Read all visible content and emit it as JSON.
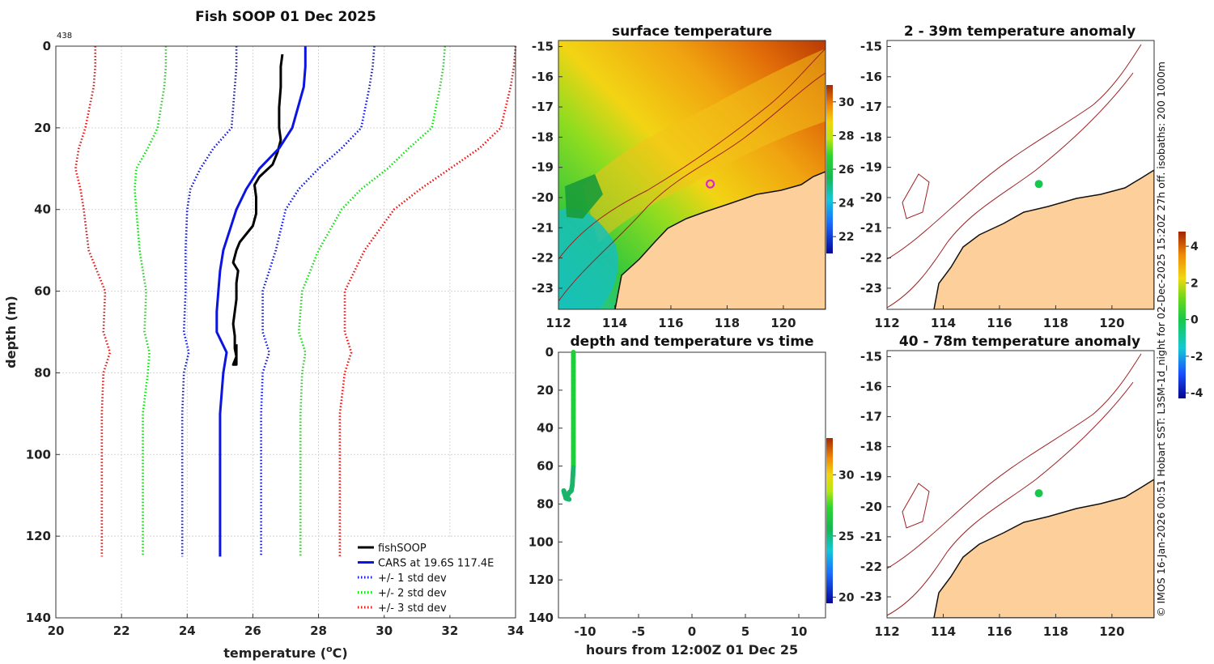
{
  "side_credit": "© IMOS 16-Jan-2026 00:51 Hobart SST: L3SM-1d_night for 02-Dec-2025 15:20Z 27h off. isobaths: 200  1000m",
  "chart_data": [
    {
      "id": "profile",
      "type": "line",
      "title": "Fish SOOP 01 Dec 2025",
      "corner_label": "438",
      "xlabel": "temperature (°C)",
      "xlabel_main": "temperature (",
      "xlabel_sup": "o",
      "xlabel_tail": "C)",
      "ylabel": "depth (m)",
      "xlim": [
        20,
        34
      ],
      "ylim": [
        140,
        0
      ],
      "xticks": [
        20,
        22,
        24,
        26,
        28,
        30,
        32,
        34
      ],
      "yticks": [
        0,
        20,
        40,
        60,
        80,
        100,
        120,
        140
      ],
      "legend_position": "bottom-right",
      "series": [
        {
          "name": "fishSOOP",
          "color": "#000000",
          "style": "solid",
          "points": [
            [
              26.9,
              2
            ],
            [
              26.85,
              5
            ],
            [
              26.85,
              10
            ],
            [
              26.8,
              15
            ],
            [
              26.8,
              20
            ],
            [
              26.85,
              23
            ],
            [
              26.75,
              26
            ],
            [
              26.6,
              29
            ],
            [
              26.2,
              32
            ],
            [
              26.05,
              34
            ],
            [
              26.1,
              37
            ],
            [
              26.1,
              41
            ],
            [
              26.0,
              44
            ],
            [
              25.8,
              46
            ],
            [
              25.6,
              48
            ],
            [
              25.5,
              50
            ],
            [
              25.4,
              53
            ],
            [
              25.55,
              55
            ],
            [
              25.5,
              58
            ],
            [
              25.5,
              62
            ],
            [
              25.45,
              65
            ],
            [
              25.4,
              68
            ],
            [
              25.45,
              71
            ],
            [
              25.45,
              74
            ],
            [
              25.5,
              76
            ],
            [
              25.4,
              78
            ],
            [
              25.5,
              78
            ],
            [
              25.5,
              73
            ]
          ]
        },
        {
          "name": "CARS at 19.6S 117.4E",
          "color": "#0b14e0",
          "style": "solid",
          "points": [
            [
              27.6,
              0
            ],
            [
              27.6,
              5
            ],
            [
              27.55,
              10
            ],
            [
              27.2,
              20
            ],
            [
              26.8,
              25
            ],
            [
              26.2,
              30
            ],
            [
              25.8,
              35
            ],
            [
              25.5,
              40
            ],
            [
              25.3,
              45
            ],
            [
              25.1,
              50
            ],
            [
              25.0,
              55
            ],
            [
              24.95,
              60
            ],
            [
              24.9,
              65
            ],
            [
              24.9,
              70
            ],
            [
              25.2,
              75
            ],
            [
              25.1,
              80
            ],
            [
              25.0,
              90
            ],
            [
              25.0,
              100
            ],
            [
              25.0,
              110
            ],
            [
              25.0,
              125
            ]
          ]
        },
        {
          "name": "+/- 1 std dev",
          "color": "#0b14e0",
          "style": "dotted",
          "points": [
            [
              25.5,
              0
            ],
            [
              25.5,
              5
            ],
            [
              25.45,
              10
            ],
            [
              25.35,
              20
            ],
            [
              24.8,
              25
            ],
            [
              24.4,
              30
            ],
            [
              24.1,
              35
            ],
            [
              24.0,
              40
            ],
            [
              23.95,
              50
            ],
            [
              23.95,
              60
            ],
            [
              23.9,
              70
            ],
            [
              24.05,
              75
            ],
            [
              23.9,
              80
            ],
            [
              23.85,
              90
            ],
            [
              23.85,
              100
            ],
            [
              23.85,
              125
            ]
          ]
        },
        {
          "name": "+/- 1 std dev upper",
          "color": "#0b14e0",
          "style": "dotted",
          "points": [
            [
              29.7,
              0
            ],
            [
              29.65,
              5
            ],
            [
              29.55,
              10
            ],
            [
              29.3,
              20
            ],
            [
              28.7,
              25
            ],
            [
              28.0,
              30
            ],
            [
              27.4,
              35
            ],
            [
              27.0,
              40
            ],
            [
              26.7,
              50
            ],
            [
              26.3,
              60
            ],
            [
              26.3,
              70
            ],
            [
              26.5,
              75
            ],
            [
              26.3,
              80
            ],
            [
              26.25,
              90
            ],
            [
              26.25,
              100
            ],
            [
              26.25,
              125
            ]
          ]
        },
        {
          "name": "+/- 2 std dev",
          "color": "#11dd11",
          "style": "dotted",
          "points": [
            [
              23.35,
              0
            ],
            [
              23.35,
              5
            ],
            [
              23.3,
              10
            ],
            [
              23.1,
              20
            ],
            [
              22.8,
              25
            ],
            [
              22.45,
              30
            ],
            [
              22.4,
              35
            ],
            [
              22.45,
              40
            ],
            [
              22.55,
              50
            ],
            [
              22.75,
              60
            ],
            [
              22.7,
              70
            ],
            [
              22.85,
              75
            ],
            [
              22.8,
              80
            ],
            [
              22.65,
              90
            ],
            [
              22.65,
              100
            ],
            [
              22.65,
              125
            ]
          ]
        },
        {
          "name": "+/- 2 std dev upper",
          "color": "#11dd11",
          "style": "dotted",
          "points": [
            [
              31.85,
              0
            ],
            [
              31.8,
              5
            ],
            [
              31.7,
              10
            ],
            [
              31.45,
              20
            ],
            [
              30.75,
              25
            ],
            [
              30.1,
              30
            ],
            [
              29.3,
              35
            ],
            [
              28.7,
              40
            ],
            [
              28.0,
              50
            ],
            [
              27.5,
              60
            ],
            [
              27.4,
              70
            ],
            [
              27.6,
              75
            ],
            [
              27.5,
              80
            ],
            [
              27.45,
              90
            ],
            [
              27.45,
              100
            ],
            [
              27.45,
              125
            ]
          ]
        },
        {
          "name": "+/- 3 std dev",
          "color": "#ee1111",
          "style": "dotted",
          "points": [
            [
              21.2,
              0
            ],
            [
              21.2,
              5
            ],
            [
              21.15,
              10
            ],
            [
              20.9,
              20
            ],
            [
              20.7,
              25
            ],
            [
              20.6,
              30
            ],
            [
              20.75,
              35
            ],
            [
              20.85,
              40
            ],
            [
              21.0,
              50
            ],
            [
              21.5,
              60
            ],
            [
              21.45,
              70
            ],
            [
              21.65,
              75
            ],
            [
              21.45,
              80
            ],
            [
              21.4,
              90
            ],
            [
              21.4,
              100
            ],
            [
              21.4,
              125
            ]
          ]
        },
        {
          "name": "+/- 3 std dev upper",
          "color": "#ee1111",
          "style": "dotted",
          "points": [
            [
              34.0,
              0
            ],
            [
              33.95,
              5
            ],
            [
              33.85,
              10
            ],
            [
              33.55,
              20
            ],
            [
              32.9,
              25
            ],
            [
              32.0,
              30
            ],
            [
              31.1,
              35
            ],
            [
              30.3,
              40
            ],
            [
              29.4,
              50
            ],
            [
              28.8,
              60
            ],
            [
              28.8,
              70
            ],
            [
              29.0,
              75
            ],
            [
              28.8,
              80
            ],
            [
              28.65,
              90
            ],
            [
              28.65,
              100
            ],
            [
              28.65,
              125
            ]
          ]
        }
      ],
      "legend": [
        {
          "label": "fishSOOP",
          "color": "#000000",
          "style": "solid"
        },
        {
          "label": "CARS at 19.6S 117.4E",
          "color": "#0b14e0",
          "style": "solid"
        },
        {
          "label": "+/- 1 std dev",
          "color": "#0b14e0",
          "style": "dotted"
        },
        {
          "label": "+/- 2 std dev",
          "color": "#11dd11",
          "style": "dotted"
        },
        {
          "label": "+/- 3 std dev",
          "color": "#ee1111",
          "style": "dotted"
        }
      ]
    },
    {
      "id": "sst_map",
      "type": "heatmap",
      "title": "surface temperature",
      "xlim": [
        112,
        121.5
      ],
      "ylim": [
        -23.7,
        -14.8
      ],
      "xticks": [
        112,
        114,
        116,
        118,
        120
      ],
      "yticks": [
        -15,
        -16,
        -17,
        -18,
        -19,
        -20,
        -21,
        -22,
        -23
      ],
      "colorbar_ticks": [
        22,
        24,
        26,
        28,
        30
      ],
      "colorbar_range": [
        21,
        31
      ],
      "marker": {
        "lon": 117.4,
        "lat": -19.55,
        "color": "#e020e0"
      }
    },
    {
      "id": "depth_time",
      "type": "scatter",
      "title": "depth and temperature vs time",
      "xlabel": "hours from 12:00Z 01 Dec 25",
      "xlim": [
        -12.5,
        12.5
      ],
      "ylim": [
        140,
        0
      ],
      "xticks": [
        -10,
        -5,
        0,
        5,
        10
      ],
      "yticks": [
        0,
        20,
        40,
        60,
        80,
        100,
        120,
        140
      ],
      "colorbar_ticks": [
        20,
        25,
        30
      ],
      "colorbar_range": [
        19.5,
        33
      ],
      "points": [
        [
          -11.1,
          0
        ],
        [
          -11.1,
          5
        ],
        [
          -11.1,
          10
        ],
        [
          -11.1,
          15
        ],
        [
          -11.1,
          20
        ],
        [
          -11.1,
          25
        ],
        [
          -11.1,
          30
        ],
        [
          -11.1,
          35
        ],
        [
          -11.1,
          40
        ],
        [
          -11.1,
          45
        ],
        [
          -11.1,
          50
        ],
        [
          -11.1,
          55
        ],
        [
          -11.1,
          60
        ],
        [
          -11.15,
          65
        ],
        [
          -11.2,
          70
        ],
        [
          -11.3,
          73
        ],
        [
          -11.5,
          74
        ],
        [
          -11.7,
          76
        ],
        [
          -11.9,
          75
        ],
        [
          -12.0,
          73
        ],
        [
          -11.8,
          77
        ],
        [
          -11.5,
          77.5
        ]
      ]
    },
    {
      "id": "anomaly_a",
      "type": "heatmap",
      "title": "2 - 39m temperature anomaly",
      "xlim": [
        112,
        121.5
      ],
      "ylim": [
        -23.7,
        -14.8
      ],
      "xticks": [
        112,
        114,
        116,
        118,
        120
      ],
      "yticks": [
        -15,
        -16,
        -17,
        -18,
        -19,
        -20,
        -21,
        -22,
        -23
      ],
      "marker": {
        "lon": 117.4,
        "lat": -19.55,
        "value": 0.0
      }
    },
    {
      "id": "anomaly_b",
      "type": "heatmap",
      "title": "40 - 78m temperature anomaly",
      "xlim": [
        112,
        121.5
      ],
      "ylim": [
        -23.7,
        -14.8
      ],
      "xticks": [
        112,
        114,
        116,
        118,
        120
      ],
      "yticks": [
        -15,
        -16,
        -17,
        -18,
        -19,
        -20,
        -21,
        -22,
        -23
      ],
      "marker": {
        "lon": 117.4,
        "lat": -19.55,
        "value": 0.0
      }
    },
    {
      "id": "anomaly_colorbar",
      "type": "heatmap",
      "colorbar_range": [
        -4.3,
        4.8
      ],
      "colorbar_ticks": [
        -4,
        -2,
        0,
        2,
        4
      ]
    }
  ]
}
